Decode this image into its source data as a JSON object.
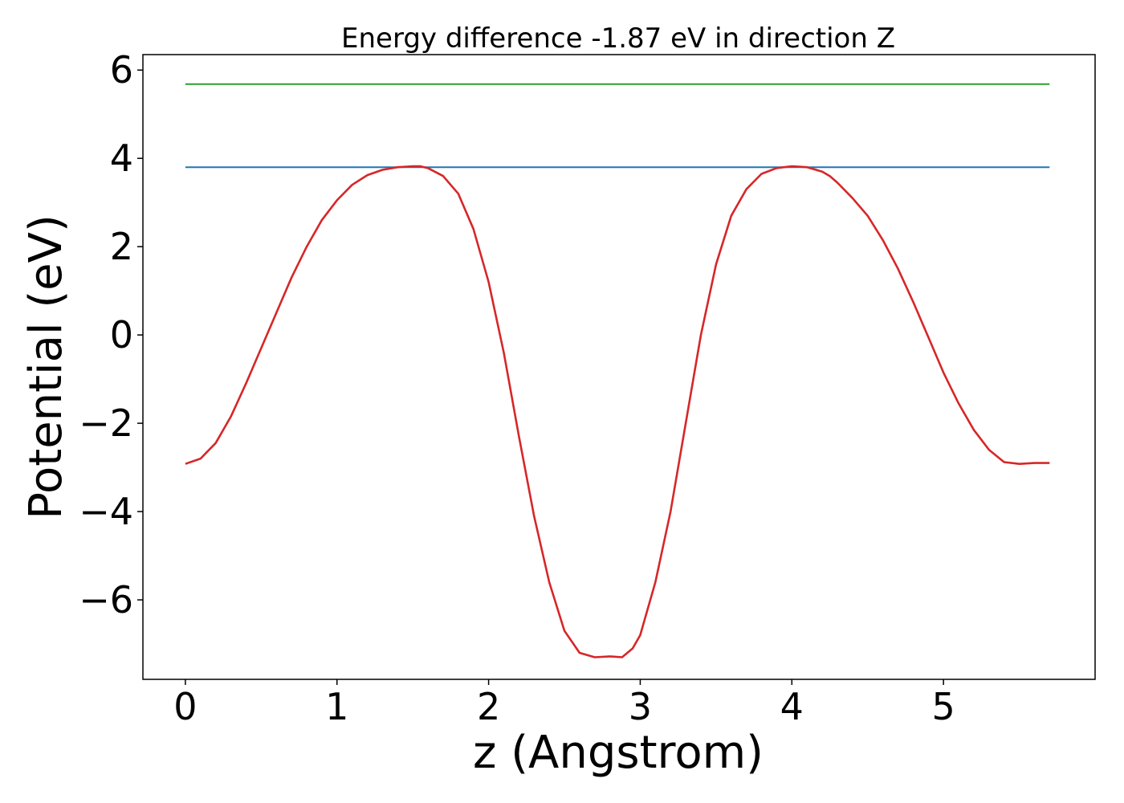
{
  "chart_data": {
    "type": "line",
    "title": "Energy difference -1.87 eV in direction Z",
    "xlabel": "z (Angstrom)",
    "ylabel": "Potential (eV)",
    "xlim": [
      -0.28,
      6.0
    ],
    "ylim": [
      -7.8,
      6.35
    ],
    "xticks": [
      0,
      1,
      2,
      3,
      4,
      5
    ],
    "xtick_labels": [
      "0",
      "1",
      "2",
      "3",
      "4",
      "5"
    ],
    "yticks": [
      -6,
      -4,
      -2,
      0,
      2,
      4,
      6
    ],
    "ytick_labels": [
      "−6",
      "−4",
      "−2",
      "0",
      "2",
      "4",
      "6"
    ],
    "grid": false,
    "legend": "none",
    "series": [
      {
        "color": "#2ca02c",
        "x": [
          0,
          5.7
        ],
        "y": [
          5.68,
          5.68
        ]
      },
      {
        "color": "#1f77b4",
        "x": [
          0,
          5.7
        ],
        "y": [
          3.8,
          3.8
        ]
      },
      {
        "color": "#d62728",
        "x": [
          0,
          0.1,
          0.2,
          0.3,
          0.4,
          0.5,
          0.6,
          0.7,
          0.8,
          0.9,
          1.0,
          1.1,
          1.2,
          1.3,
          1.4,
          1.5,
          1.55,
          1.6,
          1.7,
          1.8,
          1.9,
          2.0,
          2.1,
          2.2,
          2.3,
          2.4,
          2.5,
          2.6,
          2.7,
          2.8,
          2.88,
          2.95,
          3.0,
          3.1,
          3.2,
          3.3,
          3.4,
          3.5,
          3.6,
          3.7,
          3.8,
          3.9,
          4.0,
          4.1,
          4.2,
          4.25,
          4.3,
          4.4,
          4.5,
          4.6,
          4.7,
          4.8,
          4.9,
          5.0,
          5.1,
          5.2,
          5.3,
          5.4,
          5.5,
          5.6,
          5.7
        ],
        "y": [
          -2.92,
          -2.8,
          -2.45,
          -1.85,
          -1.1,
          -0.3,
          0.5,
          1.3,
          2.0,
          2.6,
          3.05,
          3.4,
          3.62,
          3.74,
          3.8,
          3.82,
          3.82,
          3.78,
          3.6,
          3.2,
          2.4,
          1.2,
          -0.4,
          -2.3,
          -4.1,
          -5.6,
          -6.7,
          -7.2,
          -7.3,
          -7.28,
          -7.3,
          -7.1,
          -6.8,
          -5.6,
          -4.0,
          -2.0,
          0.0,
          1.6,
          2.7,
          3.3,
          3.65,
          3.78,
          3.82,
          3.8,
          3.7,
          3.6,
          3.45,
          3.1,
          2.7,
          2.15,
          1.5,
          0.75,
          -0.05,
          -0.85,
          -1.55,
          -2.15,
          -2.6,
          -2.88,
          -2.92,
          -2.9,
          -2.9
        ]
      }
    ]
  }
}
